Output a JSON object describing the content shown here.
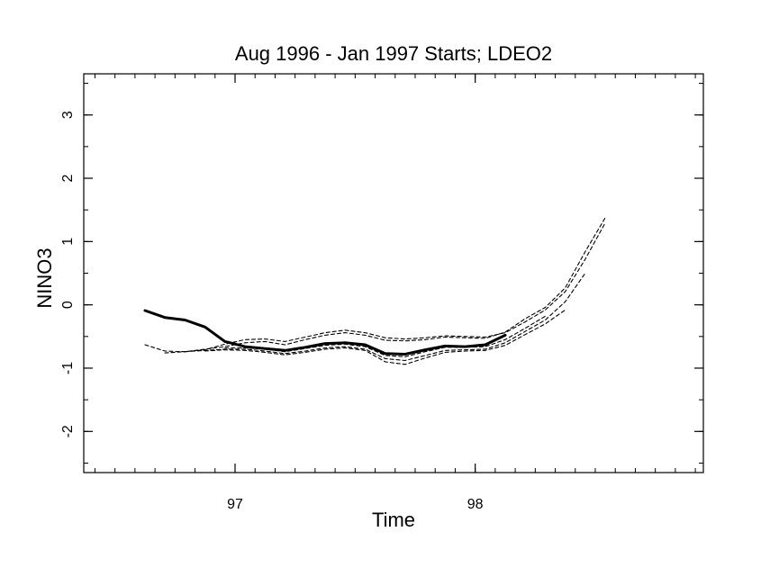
{
  "chart_data": {
    "type": "line",
    "title": "Aug 1996 - Jan 1997 Starts; LDEO2",
    "xlabel": "Time",
    "ylabel": "NINO3",
    "xlim": [
      96.37,
      98.95
    ],
    "ylim": [
      -2.65,
      3.65
    ],
    "x_ticks": [
      97,
      98
    ],
    "y_ticks": [
      -2,
      -1,
      0,
      1,
      2,
      3
    ],
    "grid": false,
    "legend": "none",
    "series": [
      {
        "style": "solid",
        "x": [
          96.625,
          96.708,
          96.792,
          96.875,
          96.958,
          97.042,
          97.125,
          97.208,
          97.292,
          97.375,
          97.458,
          97.542,
          97.625,
          97.708,
          97.792,
          97.875,
          97.958,
          98.042,
          98.125
        ],
        "y": [
          -0.09,
          -0.2,
          -0.24,
          -0.35,
          -0.58,
          -0.66,
          -0.69,
          -0.72,
          -0.67,
          -0.61,
          -0.6,
          -0.63,
          -0.77,
          -0.78,
          -0.71,
          -0.65,
          -0.66,
          -0.63,
          -0.48
        ]
      },
      {
        "style": "dashed",
        "x": [
          96.625,
          96.708,
          96.792,
          96.875,
          96.958,
          97.042,
          97.125,
          97.208,
          97.292,
          97.375,
          97.458,
          97.542,
          97.625,
          97.708,
          97.792,
          97.875,
          97.958,
          98.042,
          98.125,
          98.208,
          98.292,
          98.375,
          98.458,
          98.542
        ],
        "y": [
          -0.63,
          -0.73,
          -0.74,
          -0.7,
          -0.66,
          -0.6,
          -0.58,
          -0.63,
          -0.55,
          -0.48,
          -0.44,
          -0.48,
          -0.56,
          -0.57,
          -0.55,
          -0.51,
          -0.52,
          -0.53,
          -0.43,
          -0.22,
          -0.04,
          0.27,
          0.84,
          1.38
        ]
      },
      {
        "style": "dashed",
        "x": [
          96.708,
          96.792,
          96.875,
          96.958,
          97.042,
          97.125,
          97.208,
          97.292,
          97.375,
          97.458,
          97.542,
          97.625,
          97.708,
          97.792,
          97.875,
          97.958,
          98.042,
          98.125,
          98.208,
          98.292,
          98.375,
          98.458,
          98.542
        ],
        "y": [
          -0.76,
          -0.74,
          -0.71,
          -0.62,
          -0.55,
          -0.54,
          -0.58,
          -0.51,
          -0.44,
          -0.4,
          -0.44,
          -0.52,
          -0.54,
          -0.52,
          -0.49,
          -0.5,
          -0.51,
          -0.44,
          -0.27,
          -0.08,
          0.21,
          0.72,
          1.3
        ]
      },
      {
        "style": "dashed",
        "x": [
          96.792,
          96.875,
          96.958,
          97.042,
          97.125,
          97.208,
          97.292,
          97.375,
          97.458,
          97.542,
          97.625,
          97.708,
          97.792,
          97.875,
          97.958,
          98.042,
          98.125,
          98.208,
          98.292,
          98.375,
          98.458
        ],
        "y": [
          -0.74,
          -0.72,
          -0.7,
          -0.7,
          -0.73,
          -0.77,
          -0.73,
          -0.68,
          -0.66,
          -0.7,
          -0.85,
          -0.88,
          -0.8,
          -0.72,
          -0.71,
          -0.7,
          -0.6,
          -0.42,
          -0.24,
          0.05,
          0.5
        ]
      },
      {
        "style": "dashed",
        "x": [
          96.875,
          96.958,
          97.042,
          97.125,
          97.208,
          97.292,
          97.375,
          97.458,
          97.542,
          97.625,
          97.708,
          97.792,
          97.875,
          97.958,
          98.042,
          98.125,
          98.208,
          98.292,
          98.375
        ],
        "y": [
          -0.73,
          -0.71,
          -0.72,
          -0.75,
          -0.79,
          -0.75,
          -0.7,
          -0.68,
          -0.72,
          -0.9,
          -0.94,
          -0.84,
          -0.75,
          -0.73,
          -0.72,
          -0.64,
          -0.47,
          -0.3,
          -0.08
        ]
      },
      {
        "style": "dashed",
        "x": [
          96.958,
          97.042,
          97.125,
          97.208,
          97.292,
          97.375,
          97.458,
          97.542,
          97.625,
          97.708,
          97.792,
          97.875,
          97.958,
          98.042,
          98.125,
          98.208,
          98.292
        ],
        "y": [
          -0.68,
          -0.68,
          -0.7,
          -0.74,
          -0.69,
          -0.64,
          -0.62,
          -0.66,
          -0.8,
          -0.82,
          -0.74,
          -0.67,
          -0.67,
          -0.66,
          -0.55,
          -0.37,
          -0.18
        ]
      }
    ]
  }
}
